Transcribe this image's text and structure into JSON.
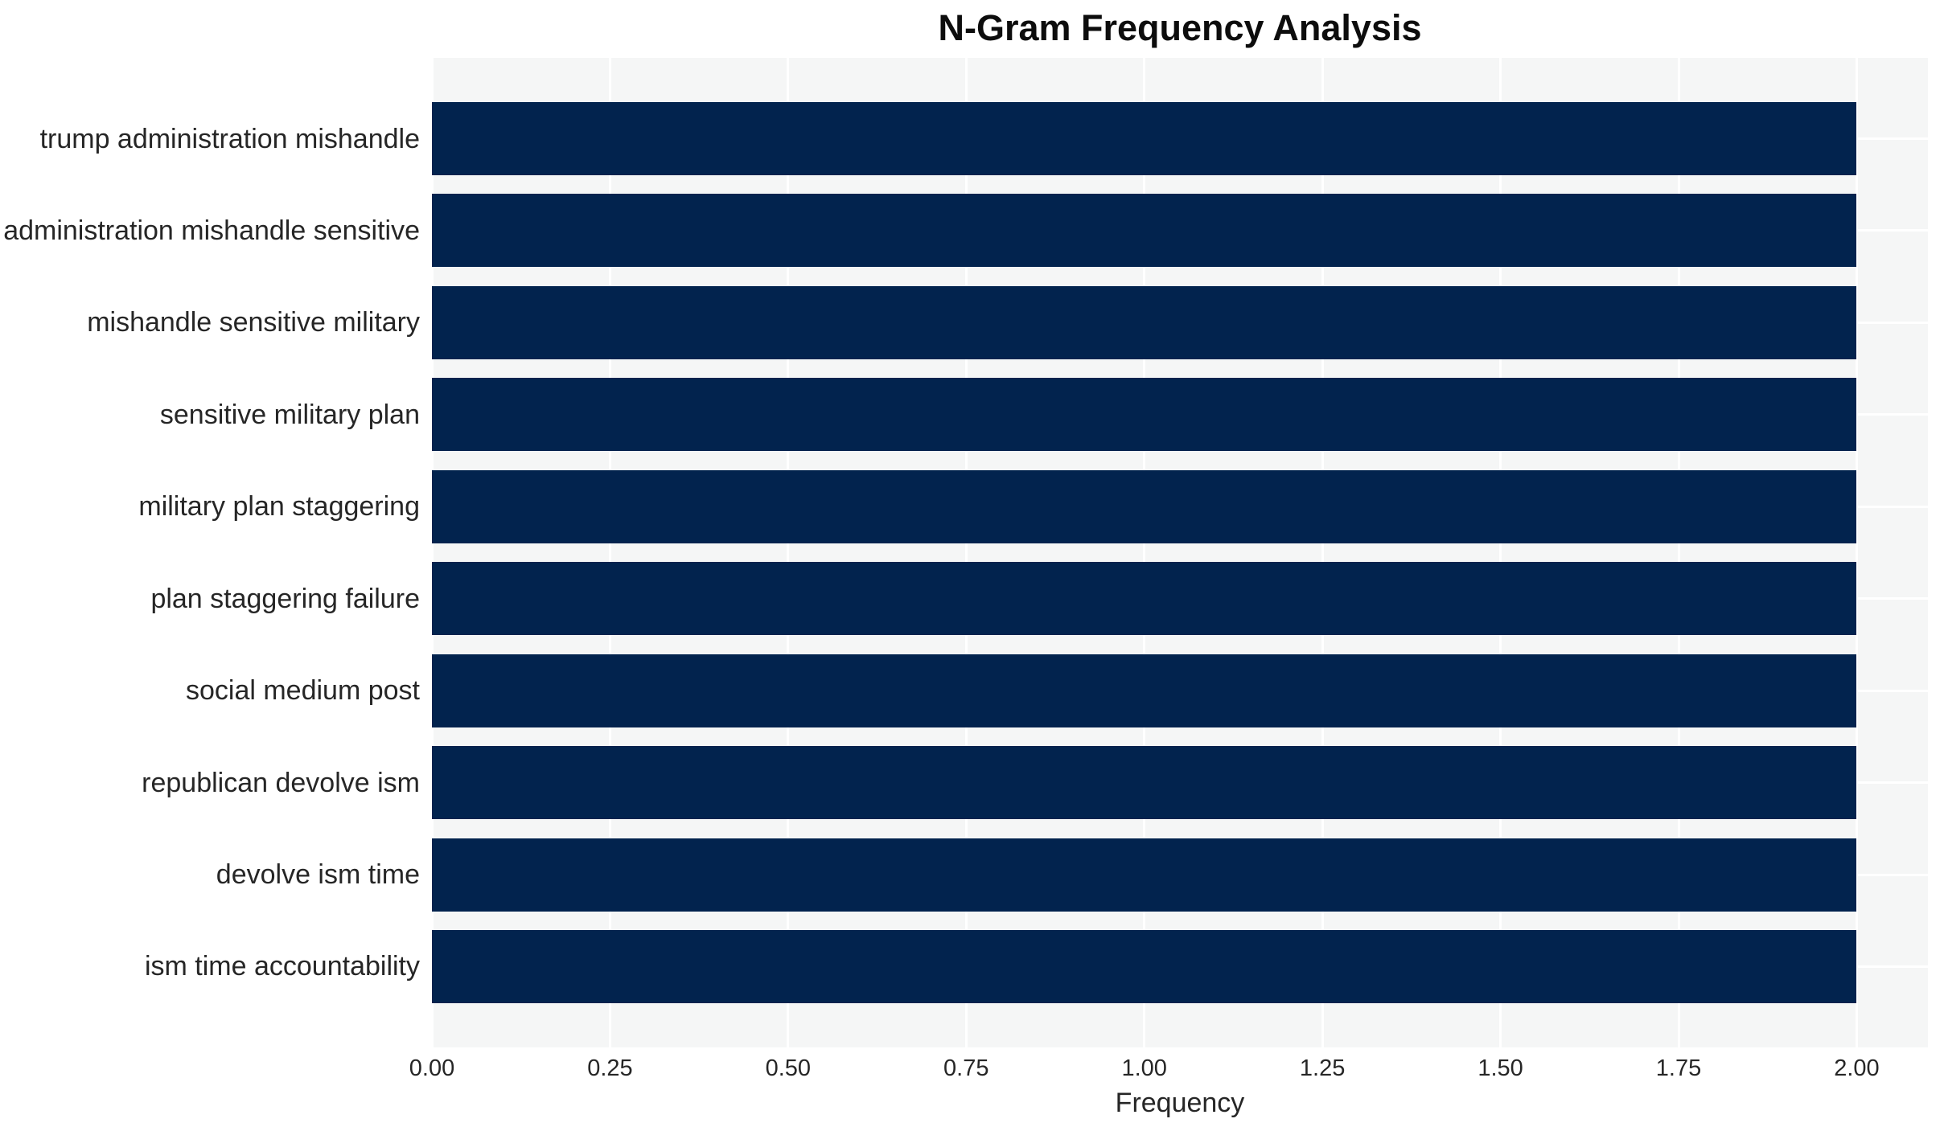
{
  "chart_data": {
    "type": "bar",
    "orientation": "horizontal",
    "title": "N-Gram Frequency Analysis",
    "xlabel": "Frequency",
    "ylabel": "",
    "categories": [
      "trump administration mishandle",
      "administration mishandle sensitive",
      "mishandle sensitive military",
      "sensitive military plan",
      "military plan staggering",
      "plan staggering failure",
      "social medium post",
      "republican devolve ism",
      "devolve ism time",
      "ism time accountability"
    ],
    "values": [
      2,
      2,
      2,
      2,
      2,
      2,
      2,
      2,
      2,
      2
    ],
    "xlim": [
      0,
      2.1
    ],
    "xticks": [
      0,
      0.25,
      0.5,
      0.75,
      1.0,
      1.25,
      1.5,
      1.75,
      2.0
    ],
    "xtick_labels": [
      "0.00",
      "0.25",
      "0.50",
      "0.75",
      "1.00",
      "1.25",
      "1.50",
      "1.75",
      "2.00"
    ],
    "grid": true,
    "legend": false,
    "colors": {
      "bar": "#02234e",
      "plot_bg": "#f5f6f6",
      "figure_bg": "#ffffff",
      "gridline": "#ffffff",
      "tick_text": "#262626",
      "title_text": "#0d0d0d"
    }
  }
}
